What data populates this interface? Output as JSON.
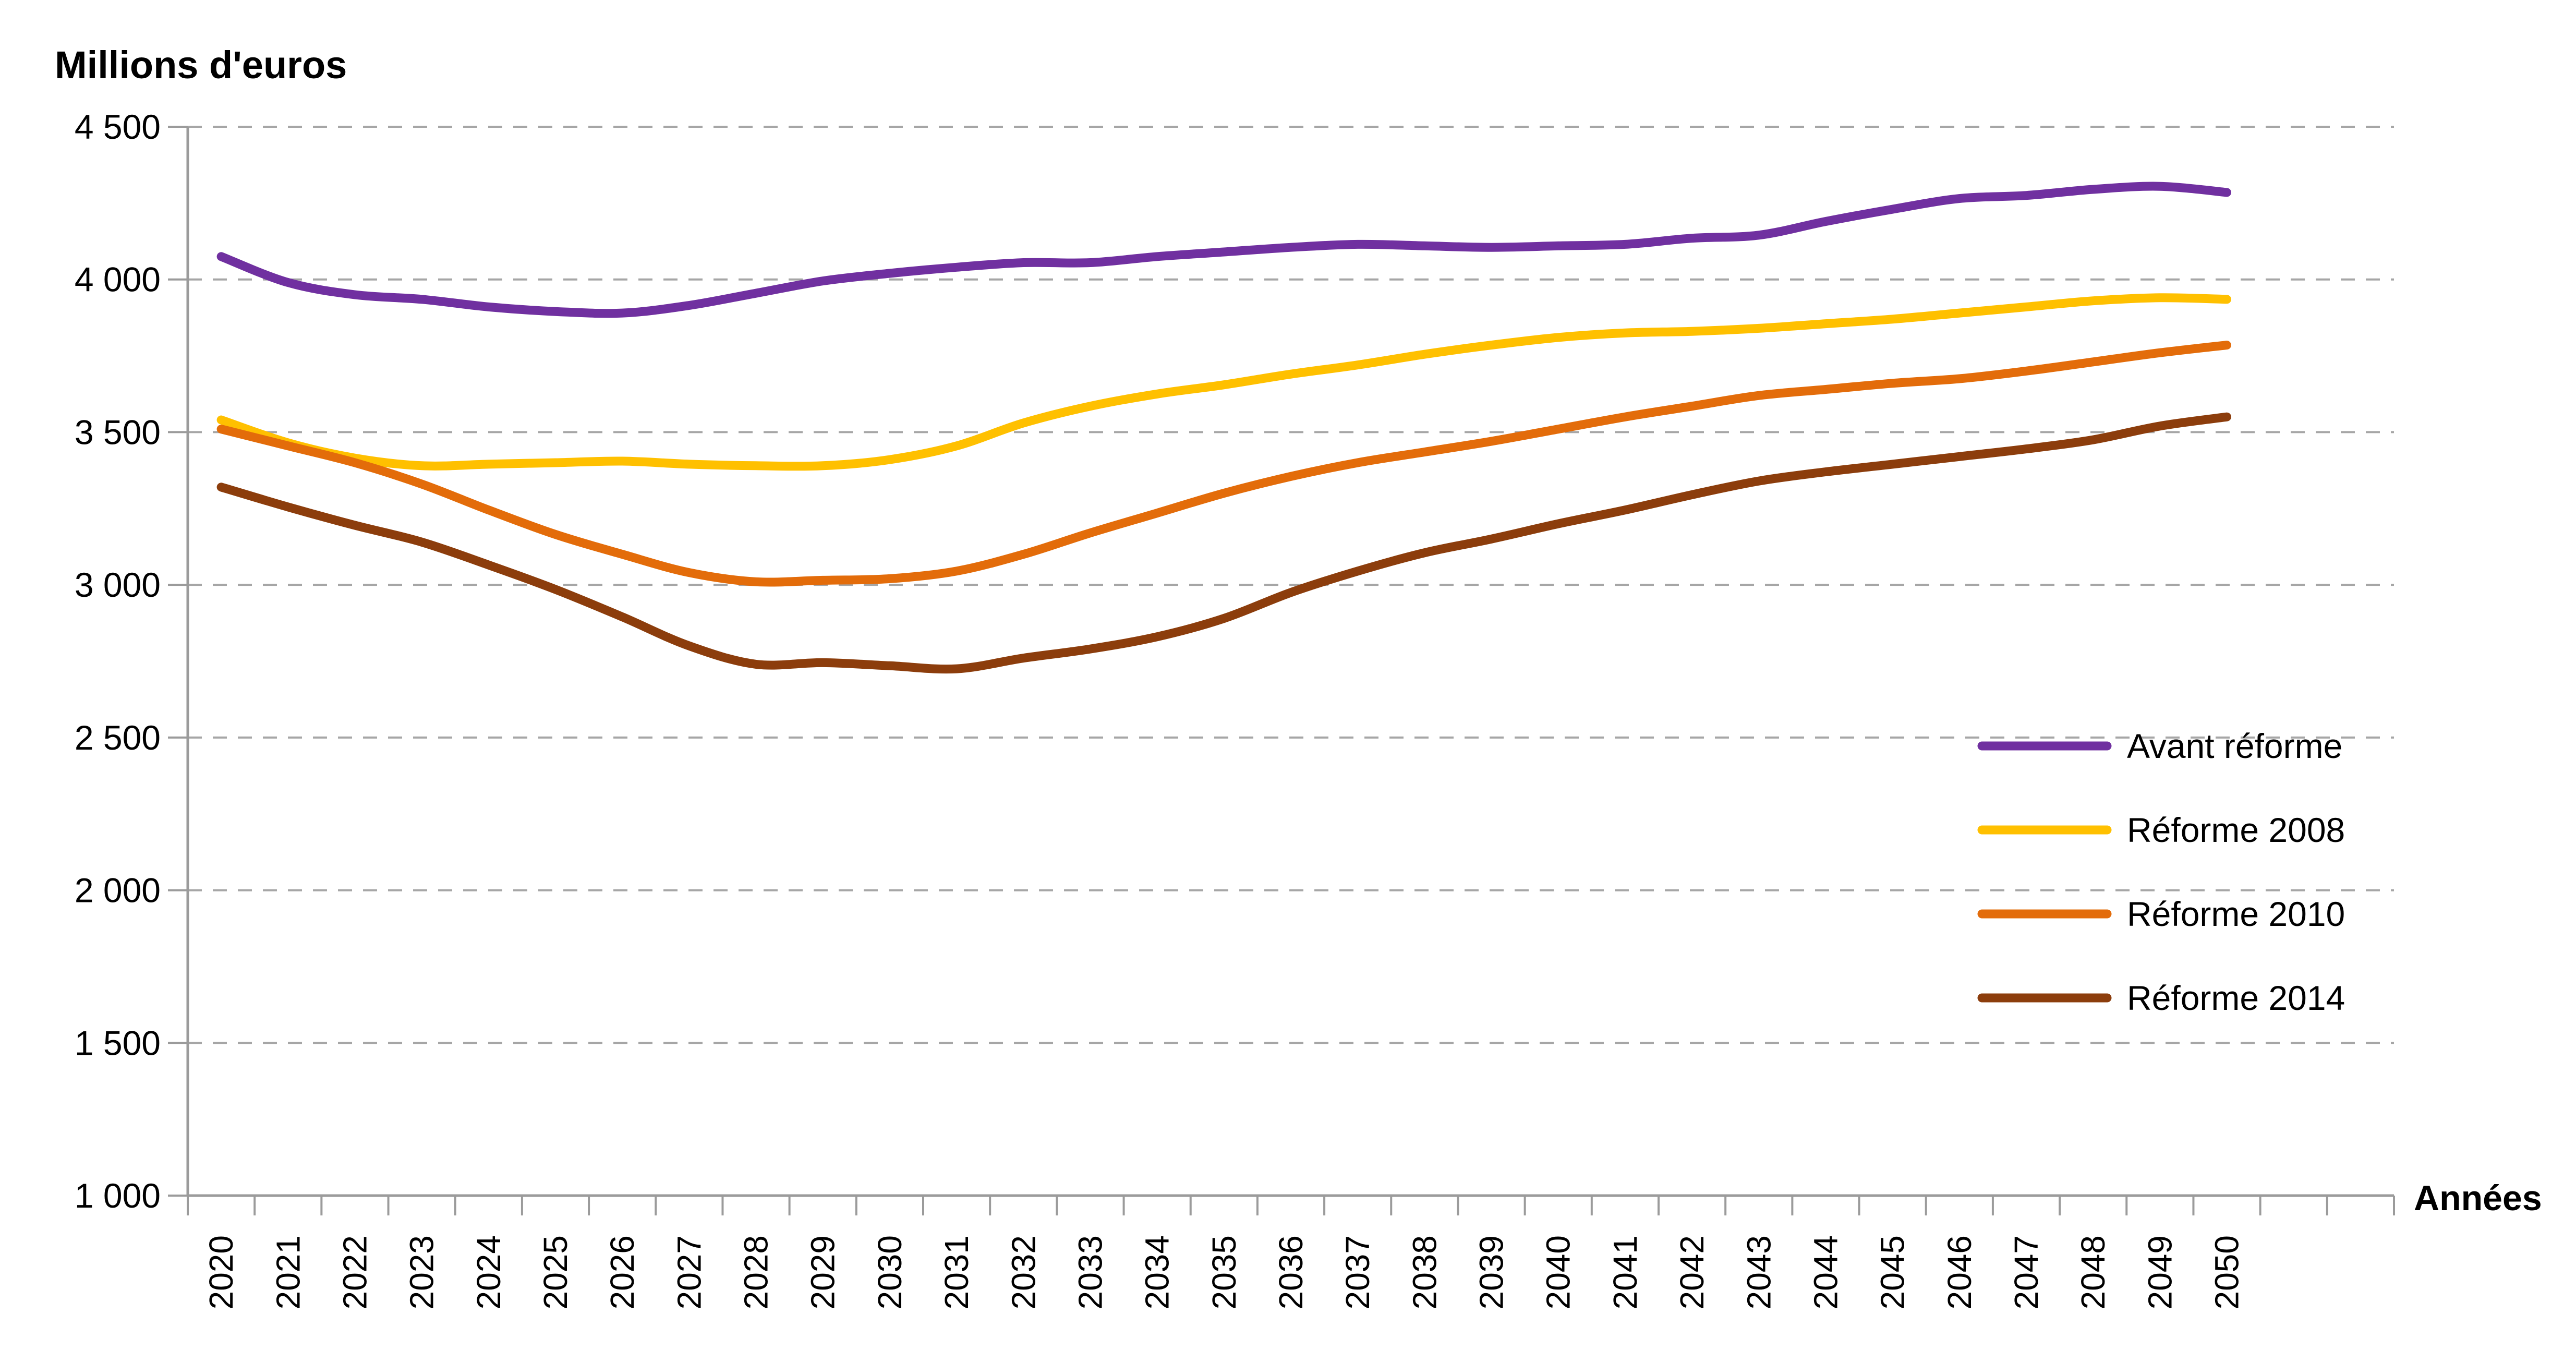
{
  "chart_data": {
    "type": "line",
    "title": "Millions d'euros",
    "xlabel": "Années",
    "ylabel": "Millions d'euros",
    "ylim": [
      1000,
      4500
    ],
    "ytick_step": 500,
    "grid": "horizontal-dashed",
    "legend_position": "right-middle",
    "y_tick_labels": [
      "4 500",
      "4 000",
      "3 500",
      "3 000",
      "2 500",
      "2 000",
      "1 500",
      "1 000"
    ],
    "categories": [
      "2020",
      "2021",
      "2022",
      "2023",
      "2024",
      "2025",
      "2026",
      "2027",
      "2028",
      "2029",
      "2030",
      "2031",
      "2032",
      "2033",
      "2034",
      "2035",
      "2036",
      "2037",
      "2038",
      "2039",
      "2040",
      "2041",
      "2042",
      "2043",
      "2044",
      "2045",
      "2046",
      "2047",
      "2048",
      "2049",
      "2050"
    ],
    "series": [
      {
        "name": "Avant réforme",
        "color": "#7030A0",
        "values": [
          4075,
          3990,
          3950,
          3935,
          3910,
          3895,
          3890,
          3915,
          3955,
          3995,
          4020,
          4040,
          4055,
          4055,
          4075,
          4090,
          4105,
          4115,
          4110,
          4105,
          4110,
          4115,
          4135,
          4145,
          4190,
          4230,
          4265,
          4275,
          4295,
          4305,
          4285
        ]
      },
      {
        "name": "Réforme 2008",
        "color": "#FFC000",
        "values": [
          3540,
          3465,
          3415,
          3390,
          3395,
          3400,
          3405,
          3395,
          3390,
          3390,
          3410,
          3455,
          3530,
          3585,
          3625,
          3655,
          3690,
          3720,
          3755,
          3785,
          3810,
          3825,
          3830,
          3840,
          3855,
          3870,
          3890,
          3910,
          3930,
          3940,
          3935
        ]
      },
      {
        "name": "Réforme 2010",
        "color": "#E36C0A",
        "values": [
          3510,
          3455,
          3400,
          3330,
          3245,
          3165,
          3100,
          3040,
          3010,
          3015,
          3020,
          3045,
          3100,
          3170,
          3235,
          3300,
          3355,
          3400,
          3435,
          3470,
          3510,
          3550,
          3585,
          3620,
          3640,
          3660,
          3675,
          3700,
          3730,
          3760,
          3785
        ]
      },
      {
        "name": "Réforme 2014",
        "color": "#8C3D0C",
        "values": [
          3320,
          3255,
          3195,
          3140,
          3065,
          2985,
          2895,
          2800,
          2740,
          2745,
          2735,
          2725,
          2760,
          2790,
          2830,
          2890,
          2975,
          3045,
          3105,
          3150,
          3200,
          3245,
          3295,
          3340,
          3370,
          3395,
          3420,
          3445,
          3475,
          3520,
          3550
        ]
      }
    ],
    "style": {
      "background": "#FFFFFF",
      "gridline_color": "#A6A6A6",
      "axis_color": "#9B9B9B",
      "text_color": "#000000"
    }
  }
}
